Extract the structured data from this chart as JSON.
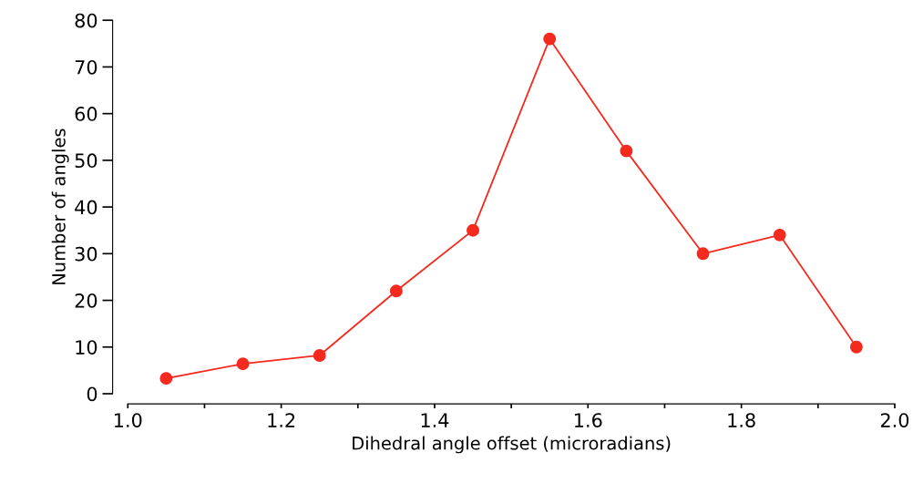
{
  "chart_data": {
    "type": "line",
    "xlabel": "Dihedral angle offset (microradians)",
    "ylabel": "Number of angles",
    "x": [
      1.05,
      1.15,
      1.25,
      1.35,
      1.45,
      1.55,
      1.65,
      1.75,
      1.85,
      1.95
    ],
    "series": [
      {
        "color": "#f52a1e",
        "values": [
          3.3,
          6.4,
          8.2,
          22,
          35,
          76,
          52,
          30,
          34,
          10
        ]
      }
    ],
    "xlim": [
      1.0,
      2.0
    ],
    "xticks": [
      {
        "value": 1,
        "label": "1.0"
      },
      {
        "value": 1.1,
        "label": null
      },
      1.2,
      {
        "value": 1.3,
        "label": null
      },
      1.4,
      {
        "value": 1.5,
        "label": null
      },
      1.6,
      {
        "value": 1.7,
        "label": null
      },
      1.8,
      {
        "value": 1.9,
        "label": null
      },
      {
        "value": 2,
        "label": "2.0"
      }
    ],
    "ylim": [
      0,
      80
    ],
    "yticks": [
      0,
      10,
      20,
      30,
      40,
      50,
      60,
      70,
      80
    ],
    "marker": "circle",
    "line_style": "solid",
    "grid": false,
    "legend": false
  }
}
